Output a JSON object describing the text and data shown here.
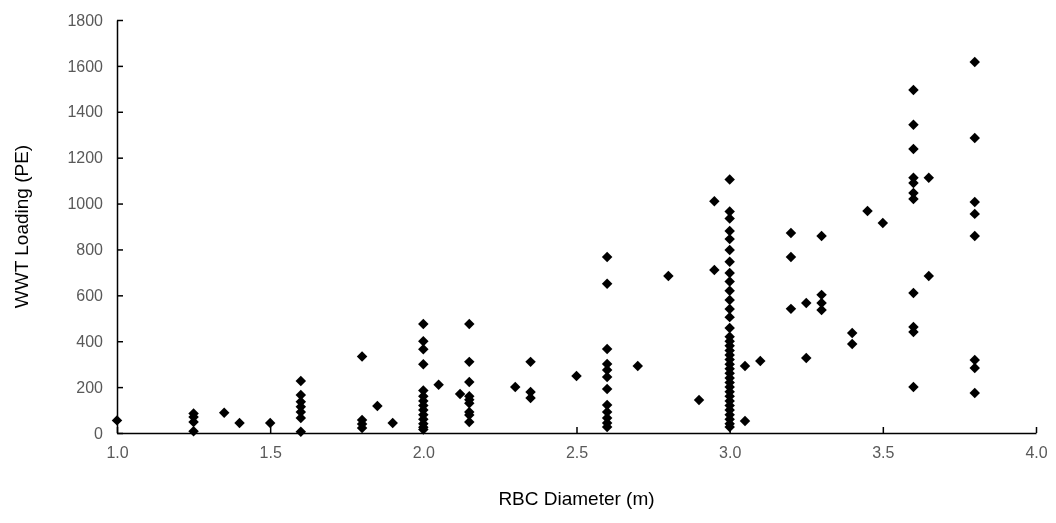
{
  "chart_data": {
    "type": "scatter",
    "xlabel": "RBC Diameter (m)",
    "ylabel": "WWT Loading (PE)",
    "marker": "diamond",
    "grid": false,
    "xlim": [
      1,
      4
    ],
    "xticks": [
      {
        "value": 1,
        "label": "1.0"
      },
      {
        "value": 1.5,
        "label": "1.5"
      },
      {
        "value": 2,
        "label": "2.0"
      },
      {
        "value": 2.5,
        "label": "2.5"
      },
      {
        "value": 3,
        "label": "3.0"
      },
      {
        "value": 3.5,
        "label": "3.5"
      },
      {
        "value": 4,
        "label": "4.0"
      }
    ],
    "ylim": [
      0,
      1800
    ],
    "yticks": [
      0,
      200,
      400,
      600,
      800,
      1000,
      1200,
      1400,
      1600,
      1800
    ],
    "series": [
      {
        "color": "#000000",
        "x": [
          1.0,
          1.25,
          1.25,
          1.25,
          1.25,
          1.35,
          1.4,
          1.5,
          1.6,
          1.6,
          1.6,
          1.6,
          1.6,
          1.6,
          1.6,
          1.8,
          1.8,
          1.8,
          1.8,
          1.85,
          1.9,
          2.0,
          2.0,
          2.0,
          2.0,
          2.0,
          2.0,
          2.0,
          2.0,
          2.0,
          2.0,
          2.0,
          2.0,
          2.0,
          2.0,
          2.05,
          2.12,
          2.15,
          2.15,
          2.15,
          2.15,
          2.15,
          2.15,
          2.15,
          2.15,
          2.15,
          2.3,
          2.35,
          2.35,
          2.35,
          2.5,
          2.6,
          2.6,
          2.6,
          2.6,
          2.6,
          2.6,
          2.6,
          2.6,
          2.6,
          2.6,
          2.6,
          2.6,
          2.7,
          2.8,
          2.9,
          2.95,
          2.95,
          3.0,
          3.0,
          3.0,
          3.0,
          3.0,
          3.0,
          3.0,
          3.0,
          3.0,
          3.0,
          3.0,
          3.0,
          3.0,
          3.0,
          3.0,
          3.0,
          3.0,
          3.0,
          3.0,
          3.0,
          3.0,
          3.0,
          3.0,
          3.0,
          3.0,
          3.0,
          3.0,
          3.0,
          3.0,
          3.0,
          3.0,
          3.0,
          3.0,
          3.0,
          3.0,
          3.05,
          3.05,
          3.1,
          3.2,
          3.2,
          3.2,
          3.25,
          3.25,
          3.3,
          3.3,
          3.3,
          3.3,
          3.4,
          3.4,
          3.45,
          3.5,
          3.6,
          3.6,
          3.6,
          3.6,
          3.6,
          3.6,
          3.6,
          3.6,
          3.6,
          3.6,
          3.6,
          3.65,
          3.65,
          3.8,
          3.8,
          3.8,
          3.8,
          3.8,
          3.8,
          3.8,
          3.8
        ],
        "values": [
          55,
          85,
          70,
          48,
          8,
          88,
          44,
          44,
          227,
          166,
          136,
          114,
          92,
          65,
          5,
          333,
          57,
          39,
          22,
          118,
          44,
          475,
          400,
          365,
          300,
          185,
          160,
          140,
          120,
          100,
          80,
          60,
          40,
          25,
          15,
          210,
          170,
          475,
          310,
          222,
          160,
          145,
          130,
          92,
          78,
          48,
          200,
          310,
          179,
          153,
          248,
          767,
          650,
          366,
          301,
          275,
          244,
          192,
          122,
          92,
          65,
          44,
          26,
          292,
          684,
          144,
          1010,
          710,
          1105,
          965,
          935,
          880,
          845,
          798,
          746,
          697,
          660,
          620,
          580,
          540,
          505,
          458,
          420,
          400,
          380,
          360,
          340,
          320,
          300,
          280,
          260,
          240,
          220,
          200,
          180,
          160,
          140,
          120,
          100,
          80,
          60,
          40,
          26,
          292,
          52,
          314,
          872,
          767,
          541,
          567,
          327,
          859,
          602,
          567,
          536,
          436,
          388,
          968,
          915,
          1495,
          1343,
          1238,
          1112,
          1090,
          1046,
          1020,
          610,
          462,
          440,
          200,
          1112,
          684,
          1617,
          1286,
          1007,
          955,
          859,
          318,
          283,
          174
        ]
      }
    ]
  }
}
